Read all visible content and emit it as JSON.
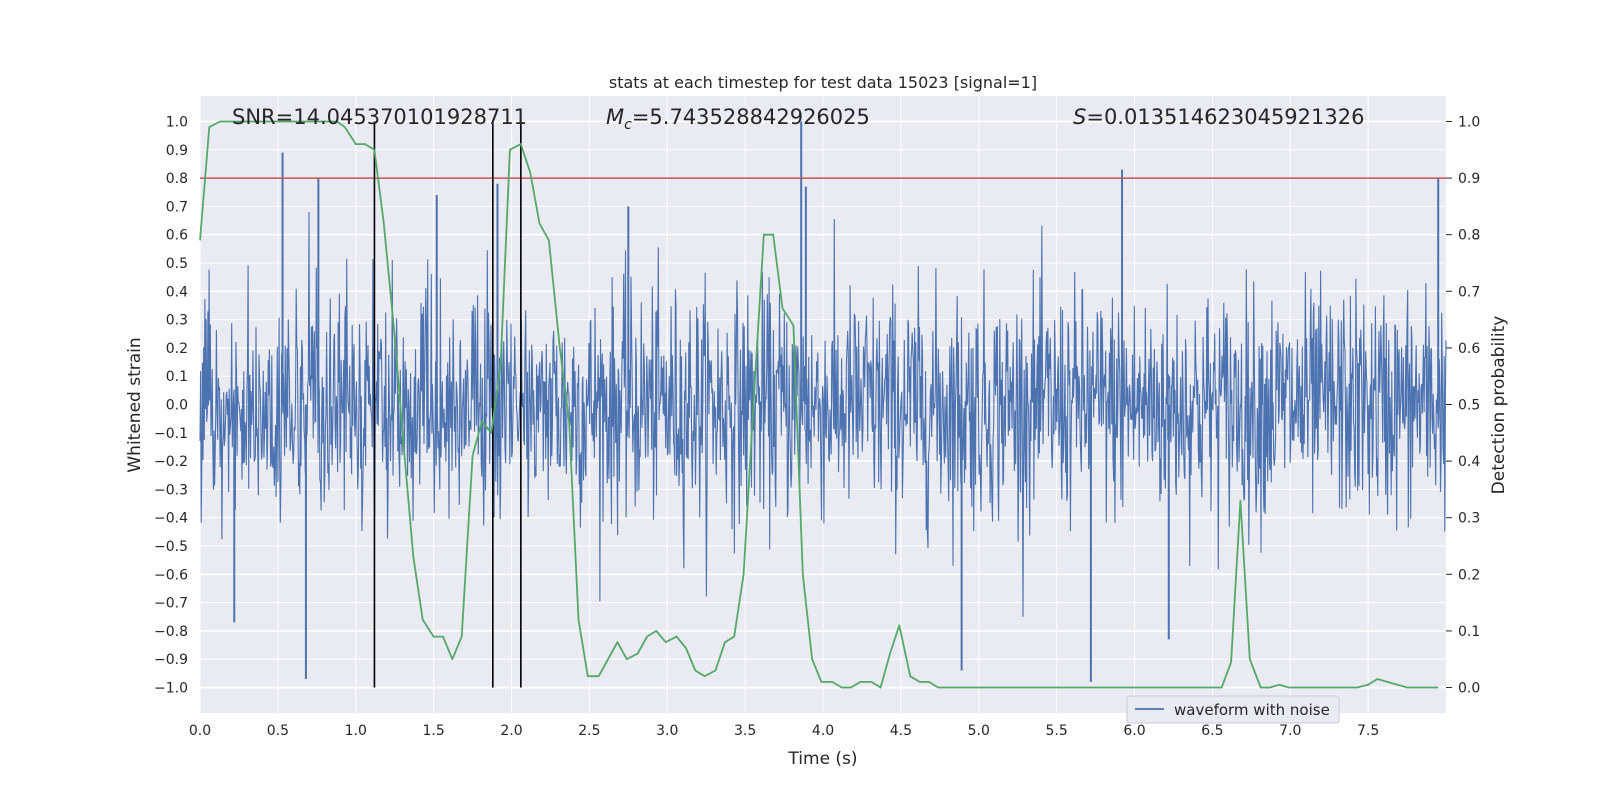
{
  "chart_data": {
    "type": "line",
    "title": "stats at each timestep for test data 15023 [signal=1]",
    "xlabel": "Time (s)",
    "ylabel_left": "Whitened strain",
    "ylabel_right": "Detection probability",
    "xlim": [
      0.0,
      8.0
    ],
    "ylim_left": [
      -1.09,
      1.09
    ],
    "ylim_right": [
      -0.045,
      1.045
    ],
    "xticks": [
      "0.0",
      "0.5",
      "1.0",
      "1.5",
      "2.0",
      "2.5",
      "3.0",
      "3.5",
      "4.0",
      "4.5",
      "5.0",
      "5.5",
      "6.0",
      "6.5",
      "7.0",
      "7.5"
    ],
    "yticks_left": [
      "1.0",
      "0.9",
      "0.8",
      "0.7",
      "0.6",
      "0.5",
      "0.4",
      "0.3",
      "0.2",
      "0.1",
      "0.0",
      "−0.1",
      "−0.2",
      "−0.3",
      "−0.4",
      "−0.5",
      "−0.6",
      "−0.7",
      "−0.8",
      "−0.9",
      "−1.0"
    ],
    "yticks_right": [
      "1.0",
      "0.9",
      "0.8",
      "0.7",
      "0.6",
      "0.5",
      "0.4",
      "0.3",
      "0.2",
      "0.1",
      "0.0"
    ],
    "grid": true,
    "legend_position": "lower-right",
    "annotations": {
      "snr_prefix": "SNR=",
      "snr_value": "14.045370101928711",
      "mc_prefix": "M",
      "mc_sub": "c",
      "mc_value": "=5.743528842926025",
      "s_prefix": "S",
      "s_value": "=0.013514623045921326"
    },
    "threshold_line": {
      "y": 0.8,
      "color": "#c44e52"
    },
    "vertical_markers": [
      1.12,
      1.88,
      2.06
    ],
    "series": [
      {
        "name": "waveform with noise",
        "axis": "left",
        "color": "#4c72b0",
        "kind": "noise-strain",
        "samples": 2048,
        "peak_values": [
          {
            "x": 0.53,
            "y": 0.89
          },
          {
            "x": 0.76,
            "y": 0.8
          },
          {
            "x": 0.68,
            "y": -0.97
          },
          {
            "x": 1.52,
            "y": 0.74
          },
          {
            "x": 1.91,
            "y": 0.78
          },
          {
            "x": 2.75,
            "y": 0.7
          },
          {
            "x": 3.86,
            "y": 1.0
          },
          {
            "x": 3.89,
            "y": 0.77
          },
          {
            "x": 4.89,
            "y": -0.94
          },
          {
            "x": 5.72,
            "y": -0.98
          },
          {
            "x": 5.92,
            "y": 0.83
          },
          {
            "x": 6.22,
            "y": -0.83
          },
          {
            "x": 7.95,
            "y": 0.8
          },
          {
            "x": 0.22,
            "y": -0.77
          }
        ]
      },
      {
        "name": "detection probability",
        "axis": "right",
        "color": "#55a868",
        "x": [
          0.0,
          0.06,
          0.13,
          0.25,
          0.5,
          0.75,
          0.88,
          0.93,
          1.0,
          1.06,
          1.12,
          1.18,
          1.25,
          1.31,
          1.37,
          1.43,
          1.5,
          1.56,
          1.62,
          1.68,
          1.75,
          1.81,
          1.87,
          1.93,
          1.99,
          2.06,
          2.12,
          2.18,
          2.24,
          2.31,
          2.37,
          2.43,
          2.49,
          2.56,
          2.62,
          2.68,
          2.74,
          2.81,
          2.87,
          2.93,
          2.99,
          3.06,
          3.12,
          3.18,
          3.24,
          3.31,
          3.37,
          3.43,
          3.49,
          3.56,
          3.62,
          3.68,
          3.74,
          3.81,
          3.87,
          3.93,
          3.99,
          4.06,
          4.12,
          4.18,
          4.24,
          4.31,
          4.37,
          4.43,
          4.49,
          4.56,
          4.62,
          4.68,
          4.74,
          4.81,
          4.87,
          4.93,
          5.0,
          5.25,
          5.5,
          5.75,
          6.0,
          6.25,
          6.5,
          6.56,
          6.62,
          6.68,
          6.74,
          6.81,
          6.87,
          6.93,
          6.99,
          7.06,
          7.25,
          7.43,
          7.5,
          7.56,
          7.75,
          7.95
        ],
        "y": [
          0.79,
          0.99,
          1.0,
          1.0,
          1.0,
          1.0,
          1.0,
          0.99,
          0.96,
          0.96,
          0.95,
          0.82,
          0.62,
          0.42,
          0.23,
          0.12,
          0.09,
          0.09,
          0.05,
          0.09,
          0.41,
          0.47,
          0.45,
          0.57,
          0.95,
          0.96,
          0.91,
          0.82,
          0.79,
          0.6,
          0.47,
          0.12,
          0.02,
          0.02,
          0.05,
          0.08,
          0.05,
          0.06,
          0.09,
          0.1,
          0.08,
          0.09,
          0.07,
          0.03,
          0.02,
          0.03,
          0.08,
          0.09,
          0.2,
          0.53,
          0.8,
          0.8,
          0.67,
          0.64,
          0.2,
          0.05,
          0.01,
          0.01,
          0.0,
          0.0,
          0.01,
          0.01,
          0.0,
          0.06,
          0.11,
          0.02,
          0.01,
          0.01,
          0.0,
          0.0,
          0.0,
          0.0,
          0.0,
          0.0,
          0.0,
          0.0,
          0.0,
          0.0,
          0.0,
          0.0,
          0.045,
          0.33,
          0.05,
          0.0,
          0.0,
          0.005,
          0.0,
          0.0,
          0.0,
          0.0,
          0.005,
          0.015,
          0.0,
          0.0
        ]
      }
    ]
  }
}
